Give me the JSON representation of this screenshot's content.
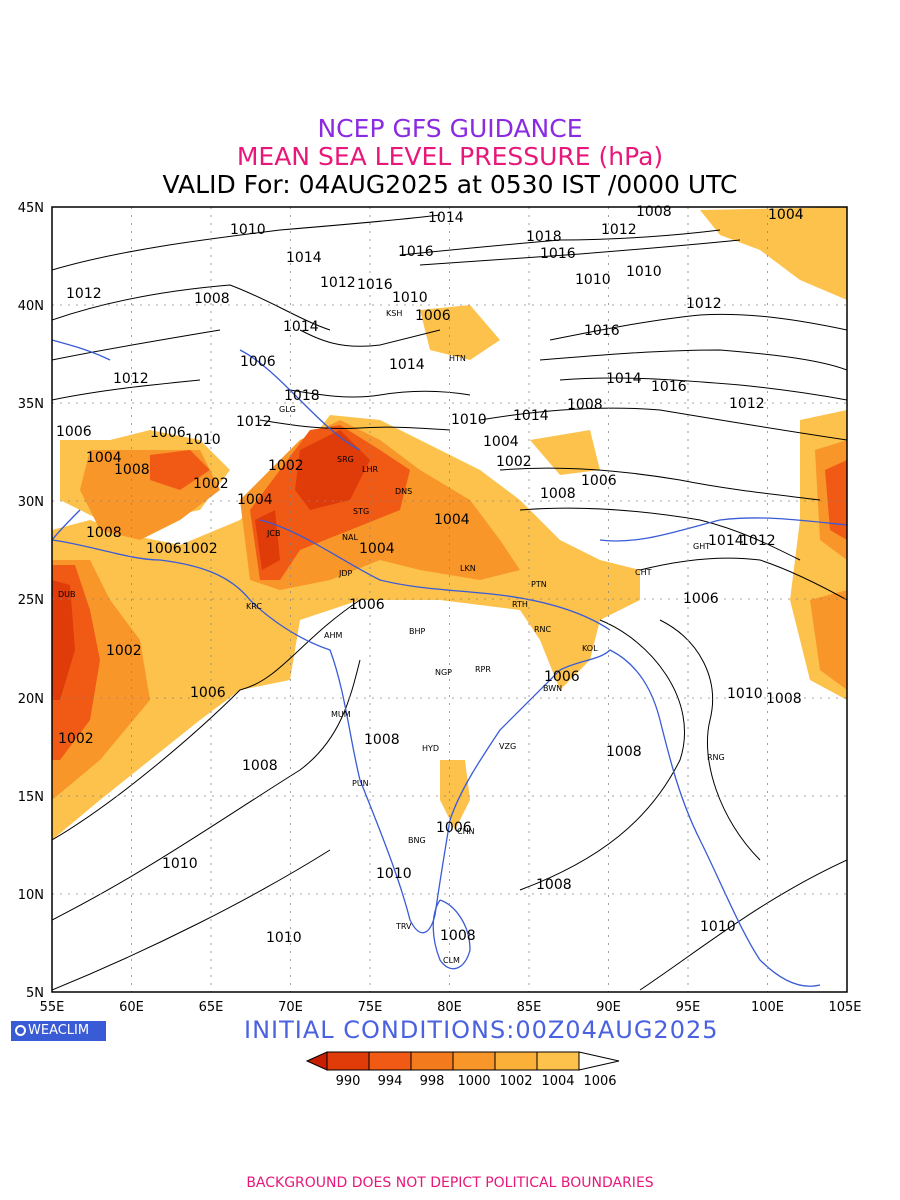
{
  "header": {
    "line1": "NCEP GFS GUIDANCE",
    "line2": "MEAN SEA LEVEL PRESSURE (hPa)",
    "line3": "VALID For: 04AUG2025 at 0530 IST /0000 UTC"
  },
  "axes": {
    "lat_labels": [
      "45N",
      "40N",
      "35N",
      "30N",
      "25N",
      "20N",
      "15N",
      "10N",
      "5N"
    ],
    "lon_labels": [
      "55E",
      "60E",
      "65E",
      "70E",
      "75E",
      "80E",
      "85E",
      "90E",
      "95E",
      "100E",
      "105E"
    ]
  },
  "legend": {
    "colors": [
      "#c81e00",
      "#e03c0a",
      "#f05a14",
      "#f47a1e",
      "#f8962a",
      "#fbb03a",
      "#fcc24c",
      "#ffffff"
    ],
    "labels": [
      "990",
      "994",
      "998",
      "1000",
      "1002",
      "1004",
      "1006"
    ]
  },
  "contour_labels": [
    {
      "text": "1010"
    },
    {
      "text": "1014"
    },
    {
      "text": "1012"
    },
    {
      "text": "1008"
    },
    {
      "text": "1004"
    },
    {
      "text": "1016"
    },
    {
      "text": "1014"
    },
    {
      "text": "1012"
    },
    {
      "text": "1016"
    },
    {
      "text": "1018"
    },
    {
      "text": "1016"
    },
    {
      "text": "1010"
    },
    {
      "text": "1006"
    },
    {
      "text": "1012"
    },
    {
      "text": "1010"
    },
    {
      "text": "1010"
    },
    {
      "text": "1014"
    },
    {
      "text": "1012"
    },
    {
      "text": "1016"
    },
    {
      "text": "1008"
    },
    {
      "text": "1018"
    },
    {
      "text": "1014"
    },
    {
      "text": "1012"
    },
    {
      "text": "1006"
    },
    {
      "text": "1014"
    },
    {
      "text": "1016"
    },
    {
      "text": "1012"
    },
    {
      "text": "1006"
    },
    {
      "text": "1012"
    },
    {
      "text": "1010"
    },
    {
      "text": "1006"
    },
    {
      "text": "1004"
    },
    {
      "text": "1014"
    },
    {
      "text": "1002"
    },
    {
      "text": "1010"
    },
    {
      "text": "1008"
    },
    {
      "text": "1002"
    },
    {
      "text": "1008"
    },
    {
      "text": "1004"
    },
    {
      "text": "1008"
    },
    {
      "text": "1002"
    },
    {
      "text": "1004"
    },
    {
      "text": "1006"
    },
    {
      "text": "1002"
    },
    {
      "text": "1004"
    },
    {
      "text": "1008"
    },
    {
      "text": "1006"
    },
    {
      "text": "1004"
    },
    {
      "text": "1006"
    },
    {
      "text": "1006"
    },
    {
      "text": "1002"
    },
    {
      "text": "1006"
    },
    {
      "text": "1002"
    },
    {
      "text": "1006"
    },
    {
      "text": "1008"
    },
    {
      "text": "1010"
    },
    {
      "text": "1008"
    },
    {
      "text": "1006"
    },
    {
      "text": "1008"
    },
    {
      "text": "1010"
    },
    {
      "text": "1010"
    },
    {
      "text": "1008"
    },
    {
      "text": "1010"
    },
    {
      "text": "1008"
    },
    {
      "text": "1010"
    },
    {
      "text": "1008"
    },
    {
      "text": "1014"
    },
    {
      "text": "1012"
    }
  ],
  "cities": [
    "KSH",
    "HTN",
    "SRG",
    "LHR",
    "STG",
    "DNS",
    "NAL",
    "JCB",
    "JDP",
    "KRC",
    "AHM",
    "BHP",
    "LKN",
    "PTN",
    "RTH",
    "RNC",
    "KOL",
    "BWN",
    "NGP",
    "RPR",
    "MUM",
    "PUN",
    "HYD",
    "VZG",
    "BNG",
    "CHN",
    "TRV",
    "CLM",
    "RNG",
    "CHT",
    "GHT",
    "DUB",
    "GLG"
  ],
  "brand": {
    "label": "WEACLIM"
  },
  "initial_conditions": "INITIAL  CONDITIONS:00Z04AUG2025",
  "footer": "BACKGROUND DOES NOT DEPICT POLITICAL BOUNDARIES",
  "colors": {
    "title1": "#8a2be2",
    "title2": "#e8177a",
    "coastline": "#3a5bd6"
  }
}
